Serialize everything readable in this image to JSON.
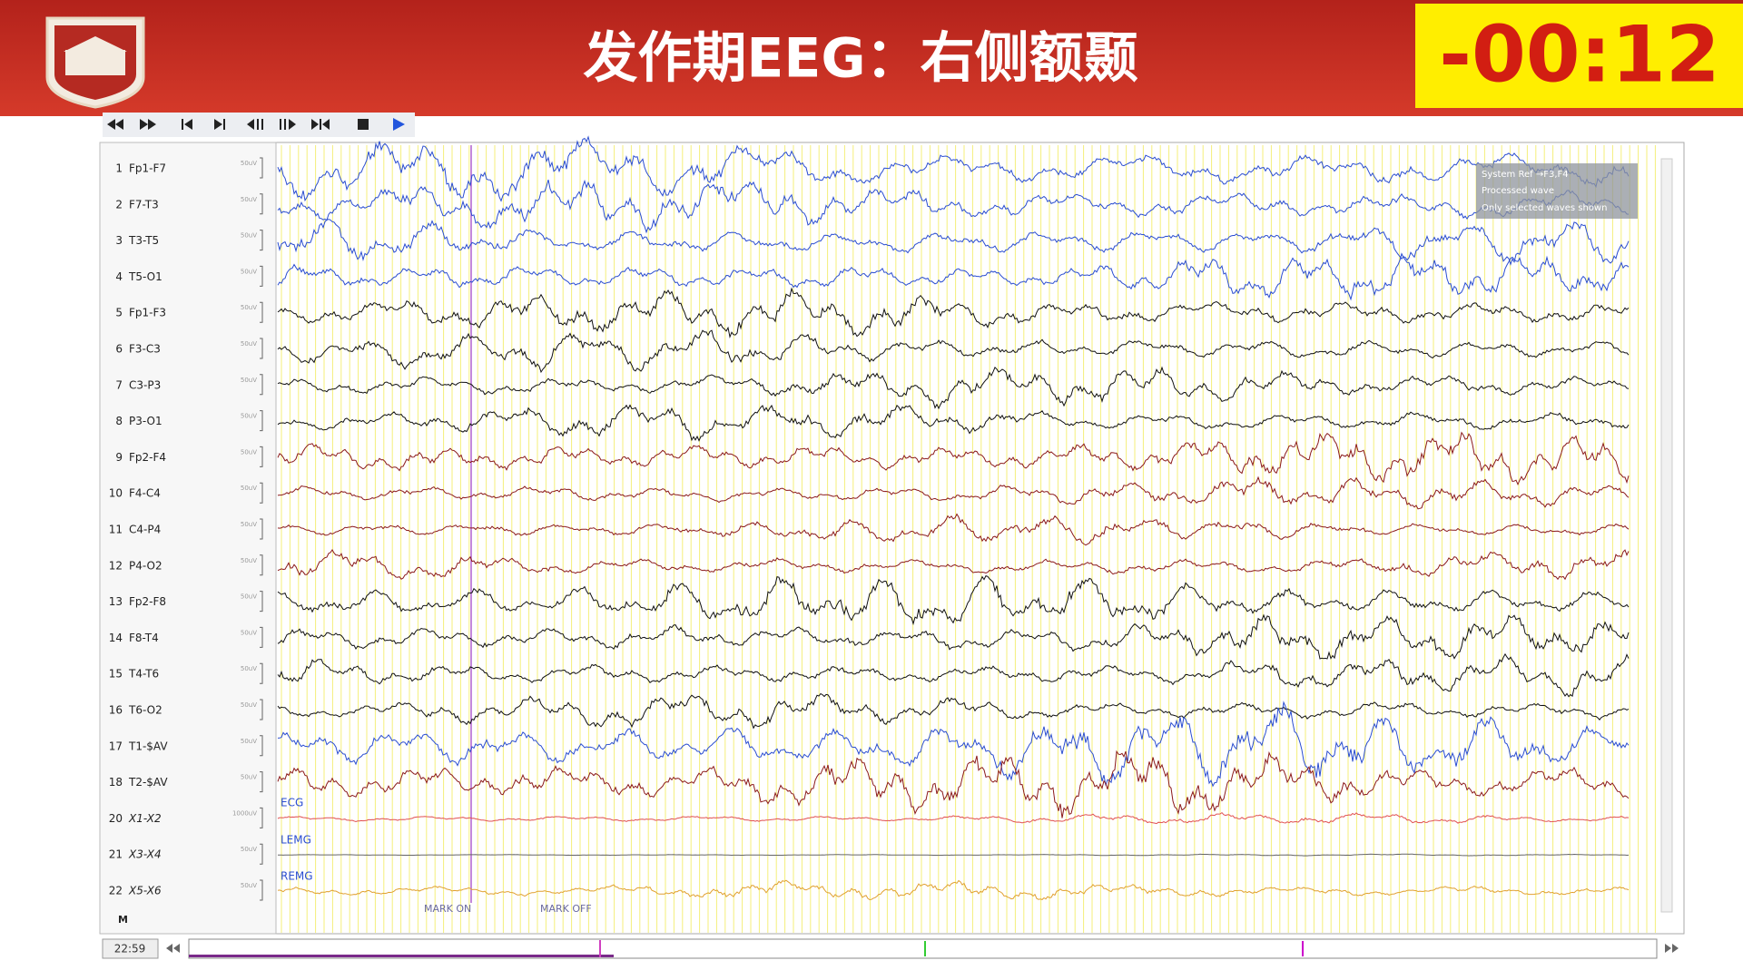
{
  "header": {
    "title": "发作期EEG：右侧额颞",
    "timer": "-00:12"
  },
  "channels": [
    {
      "number": 1,
      "name": "Fp1-F7",
      "scale": "50uV"
    },
    {
      "number": 2,
      "name": "F7-T3",
      "scale": "50uV"
    },
    {
      "number": 3,
      "name": "T3-T5",
      "scale": "50uV"
    },
    {
      "number": 4,
      "name": "T5-O1",
      "scale": "50uV"
    },
    {
      "number": 5,
      "name": "Fp1-F3",
      "scale": "50uV"
    },
    {
      "number": 6,
      "name": "F3-C3",
      "scale": "50uV"
    },
    {
      "number": 7,
      "name": "C3-P3",
      "scale": "50uV"
    },
    {
      "number": 8,
      "name": "P3-O1",
      "scale": "50uV"
    },
    {
      "number": 9,
      "name": "Fp2-F4",
      "scale": "50uV"
    },
    {
      "number": 10,
      "name": "F4-C4",
      "scale": "50uV"
    },
    {
      "number": 11,
      "name": "C4-P4",
      "scale": "50uV"
    },
    {
      "number": 12,
      "name": "P4-O2",
      "scale": "50uV"
    },
    {
      "number": 13,
      "name": "Fp2-F8",
      "scale": "50uV"
    },
    {
      "number": 14,
      "name": "F8-T4",
      "scale": "50uV"
    },
    {
      "number": 15,
      "name": "T4-T6",
      "scale": "50uV"
    },
    {
      "number": 16,
      "name": "T6-O2",
      "scale": "50uV"
    },
    {
      "number": 17,
      "name": "T1-$AV",
      "scale": "50uV"
    },
    {
      "number": 18,
      "name": "T2-$AV",
      "scale": "50uV"
    },
    {
      "number": 20,
      "name": "X1-X2",
      "scale": "1000uV"
    },
    {
      "number": 21,
      "name": "X3-X4",
      "scale": "50uV"
    },
    {
      "number": 22,
      "name": "X5-X6",
      "scale": "50uV"
    }
  ],
  "marker_row": "M",
  "annotations": {
    "ecg": "ECG",
    "lemg": "LEMG",
    "remg": "REMG",
    "mark_on": "MARK ON",
    "mark_off": "MARK OFF"
  },
  "info_box": [
    "System Ref →F3,F4",
    "Processed wave",
    "Only selected waves shown"
  ],
  "time": "22:59"
}
